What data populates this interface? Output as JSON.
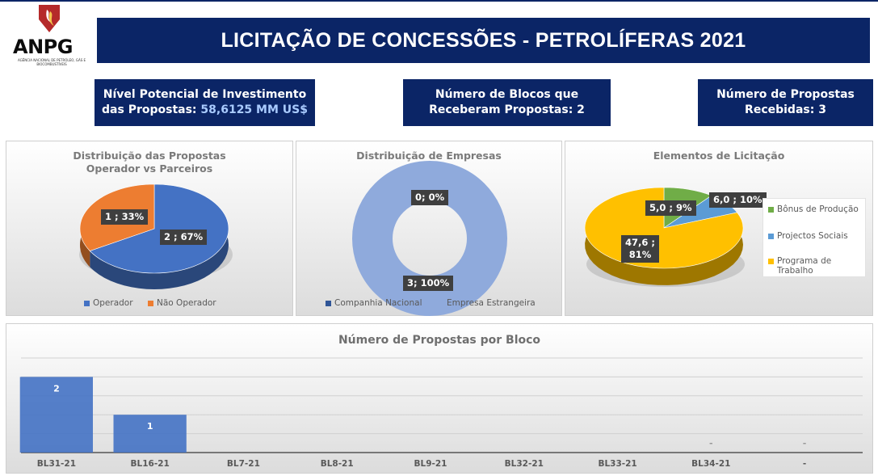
{
  "logo": {
    "brand": "ANPG",
    "tagline": "AGÊNCIA NACIONAL DE PETRÓLEO, GÁS E BIOCOMBUSTÍVEIS"
  },
  "header": {
    "title": "LICITAÇÃO DE CONCESSÕES - PETROLÍFERAS 2021"
  },
  "kpis": {
    "investment": {
      "line1": "Nível Potencial de Investimento",
      "line2_prefix": "das Propostas:",
      "value": "58,6125 MM US$"
    },
    "blocks": {
      "line1": "Número de Blocos que",
      "line2": "Receberam Propostas: 2"
    },
    "proposals": {
      "line1": "Número de Propostas",
      "line2": "Recebidas: 3"
    }
  },
  "colors": {
    "navy": "#0b2566",
    "blue": "#4472c4",
    "orange": "#ed7d31",
    "lightblue": "#8faadc",
    "green": "#70ad47",
    "skyblue": "#5b9bd5",
    "gold": "#ffc000"
  },
  "chart_data": [
    {
      "type": "pie",
      "title": "Distribuição das Propostas Operador vs Parceiros",
      "title_lines": [
        "Distribuição das Propostas",
        "Operador vs Parceiros"
      ],
      "slices": [
        {
          "name": "Operador",
          "value": 2,
          "percent": 67,
          "label": "2 ; 67%"
        },
        {
          "name": "Não Operador",
          "value": 1,
          "percent": 33,
          "label": "1 ; 33%"
        }
      ],
      "legend": "bottom"
    },
    {
      "type": "pie",
      "variant": "donut",
      "title": "Distribuição de Empresas",
      "slices": [
        {
          "name": "Companhia Nacional",
          "value": 0,
          "percent": 0,
          "label": "0; 0%"
        },
        {
          "name": "Empresa Estrangeira",
          "value": 3,
          "percent": 100,
          "label": "3; 100%"
        }
      ],
      "legend": "bottom"
    },
    {
      "type": "pie",
      "title": "Elementos de Licitação",
      "slices": [
        {
          "name": "Bônus de Produção",
          "value": 6.0,
          "percent": 10,
          "label": "6,0 ; 10%"
        },
        {
          "name": "Projectos Sociais",
          "value": 5.0,
          "percent": 9,
          "label": "5,0 ; 9%"
        },
        {
          "name": "Programa de Trabalho",
          "value": 47.6,
          "percent": 81,
          "label_line1": "47,6 ;",
          "label_line2": "81%"
        }
      ],
      "legend_labels": [
        "Bônus de Produção",
        "Projectos Sociais",
        "Programa de",
        "Trabalho"
      ],
      "legend": "right"
    },
    {
      "type": "bar",
      "title": "Número de Propostas por Bloco",
      "categories": [
        "BL31-21",
        "BL16-21",
        "BL7-21",
        "BL8-21",
        "BL9-21",
        "BL32-21",
        "BL33-21",
        "BL34-21",
        "-"
      ],
      "values": [
        2,
        1,
        0,
        0,
        0,
        0,
        0,
        0,
        0
      ],
      "data_labels": [
        "2",
        "1",
        "",
        "",
        "",
        "",
        "",
        "-",
        "-"
      ],
      "ylim": [
        0,
        2.5
      ],
      "grid": true
    }
  ]
}
